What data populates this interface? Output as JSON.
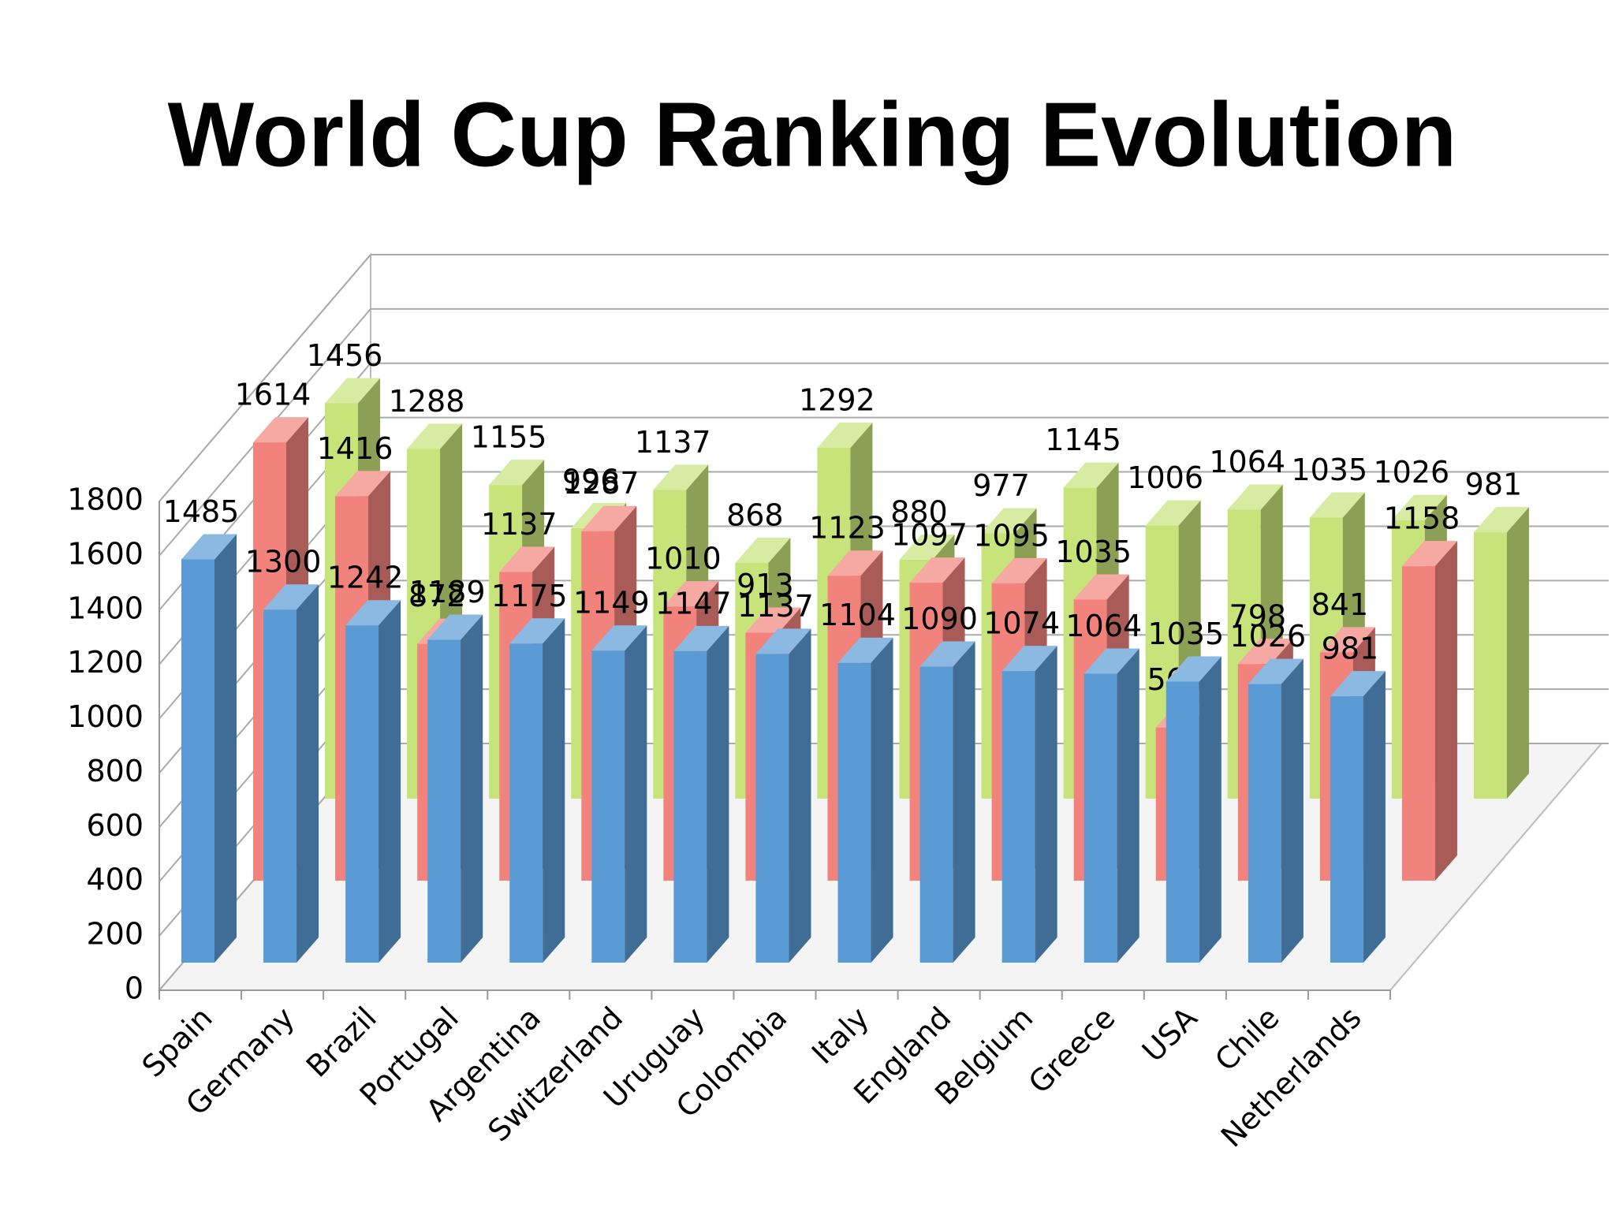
{
  "chart_data": {
    "type": "bar3d",
    "title": "World Cup Ranking Evolution",
    "categories": [
      "Spain",
      "Germany",
      "Brazil",
      "Portugal",
      "Argentina",
      "Switzerland",
      "Uruguay",
      "Colombia",
      "Italy",
      "England",
      "Belgium",
      "Greece",
      "USA",
      "Chile",
      "Netherlands"
    ],
    "series": [
      {
        "color": "#5b9bd5",
        "values": [
          1485,
          1300,
          1242,
          1189,
          1175,
          1149,
          1147,
          1137,
          1104,
          1090,
          1074,
          1064,
          1035,
          1026,
          981
        ]
      },
      {
        "color": "#f2837c",
        "values": [
          1614,
          1416,
          872,
          1137,
          1287,
          1010,
          913,
          1123,
          1097,
          1095,
          1035,
          564,
          798,
          841,
          1158
        ]
      },
      {
        "color": "#c6e47a",
        "values": [
          1456,
          1288,
          1155,
          996,
          1137,
          868,
          1292,
          880,
          977,
          1145,
          1006,
          1064,
          1035,
          1026,
          981
        ]
      }
    ],
    "ylim": [
      0,
      1800
    ],
    "yticks": [
      0,
      200,
      400,
      600,
      800,
      1000,
      1200,
      1400,
      1600,
      1800
    ],
    "grid": true
  }
}
